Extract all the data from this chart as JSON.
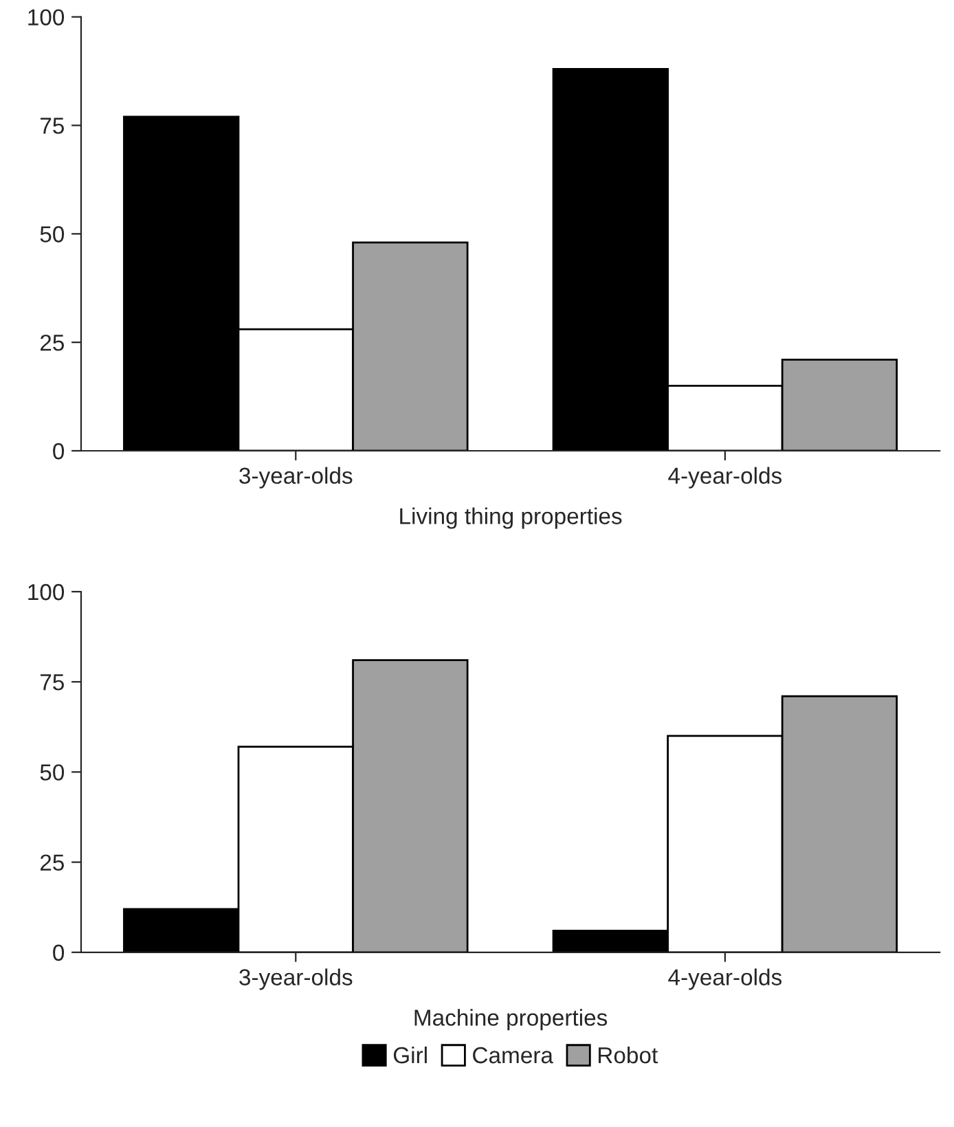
{
  "chart_data": [
    {
      "type": "bar",
      "xlabel": "Living thing properties",
      "categories": [
        "3-year-olds",
        "4-year-olds"
      ],
      "ylim": [
        0,
        100
      ],
      "yticks": [
        0,
        25,
        50,
        75,
        100
      ],
      "grid": false,
      "series": [
        {
          "color": "#000000",
          "values": [
            77,
            88
          ]
        },
        {
          "color": "#ffffff",
          "values": [
            28,
            15
          ]
        },
        {
          "color": "#a0a0a0",
          "values": [
            48,
            21
          ]
        }
      ]
    },
    {
      "type": "bar",
      "xlabel": "Machine properties",
      "categories": [
        "3-year-olds",
        "4-year-olds"
      ],
      "ylim": [
        0,
        100
      ],
      "yticks": [
        0,
        25,
        50,
        75,
        100
      ],
      "grid": false,
      "legend": "bottom",
      "series": [
        {
          "name": "Girl",
          "color": "#000000",
          "values": [
            12,
            6
          ]
        },
        {
          "name": "Camera",
          "color": "#ffffff",
          "values": [
            57,
            60
          ]
        },
        {
          "name": "Robot",
          "color": "#a0a0a0",
          "values": [
            81,
            71
          ]
        }
      ]
    }
  ]
}
